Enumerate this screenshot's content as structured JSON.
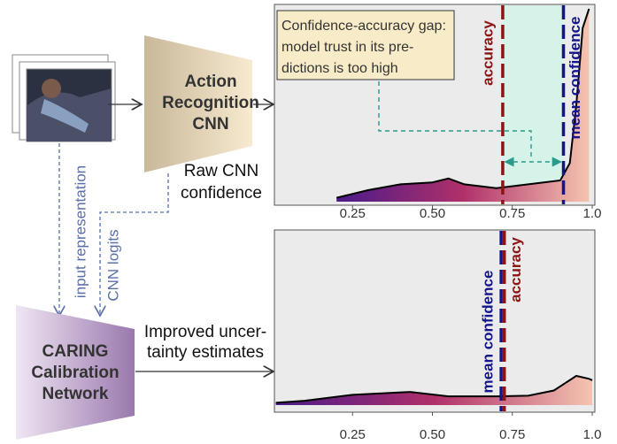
{
  "input_label": "input representation",
  "logits_label": "CNN logits",
  "action_cnn": [
    "Action",
    "Recognition",
    "CNN"
  ],
  "raw_label": [
    "Raw CNN",
    "confidence"
  ],
  "caring": [
    "CARING",
    "Calibration",
    "Network"
  ],
  "improved_label": [
    "Improved uncer-",
    "tainty estimates"
  ],
  "annotation": [
    "Confidence-accuracy gap:",
    "model trust in its pre-",
    "dictions is too high"
  ],
  "charts": [
    {
      "type": "density",
      "xlim": [
        0,
        1
      ],
      "xticks": [
        0.25,
        {
          "value": 0.5,
          "label": "0.50"
        },
        0.75,
        {
          "value": 1,
          "label": "1.0"
        }
      ],
      "accuracy": {
        "label": "accuracy",
        "value": 0.72
      },
      "mean_confidence": {
        "label": "mean confidence",
        "value": 0.91
      },
      "x": [
        0.2,
        0.3,
        0.4,
        0.5,
        0.55,
        0.6,
        0.7,
        0.8,
        0.9,
        0.93,
        0.95,
        0.97,
        0.99
      ],
      "density": [
        0.02,
        0.06,
        0.09,
        0.1,
        0.12,
        0.09,
        0.07,
        0.09,
        0.11,
        0.2,
        0.5,
        0.9,
        1
      ]
    },
    {
      "type": "density",
      "xlim": [
        0,
        1
      ],
      "xticks": [
        0.25,
        {
          "value": 0.5,
          "label": "0.50"
        },
        0.75,
        {
          "value": 1,
          "label": "1.0"
        }
      ],
      "accuracy": {
        "label": "accuracy",
        "value": 0.725
      },
      "mean_confidence": {
        "label": "mean confidence",
        "value": 0.715
      },
      "x": [
        0.01,
        0.1,
        0.25,
        0.43,
        0.55,
        0.7,
        0.8,
        0.88,
        0.95,
        0.99,
        1
      ],
      "density": [
        0.08,
        0.15,
        0.35,
        0.45,
        0.3,
        0.3,
        0.32,
        0.5,
        1,
        0.9,
        0.85
      ]
    }
  ]
}
